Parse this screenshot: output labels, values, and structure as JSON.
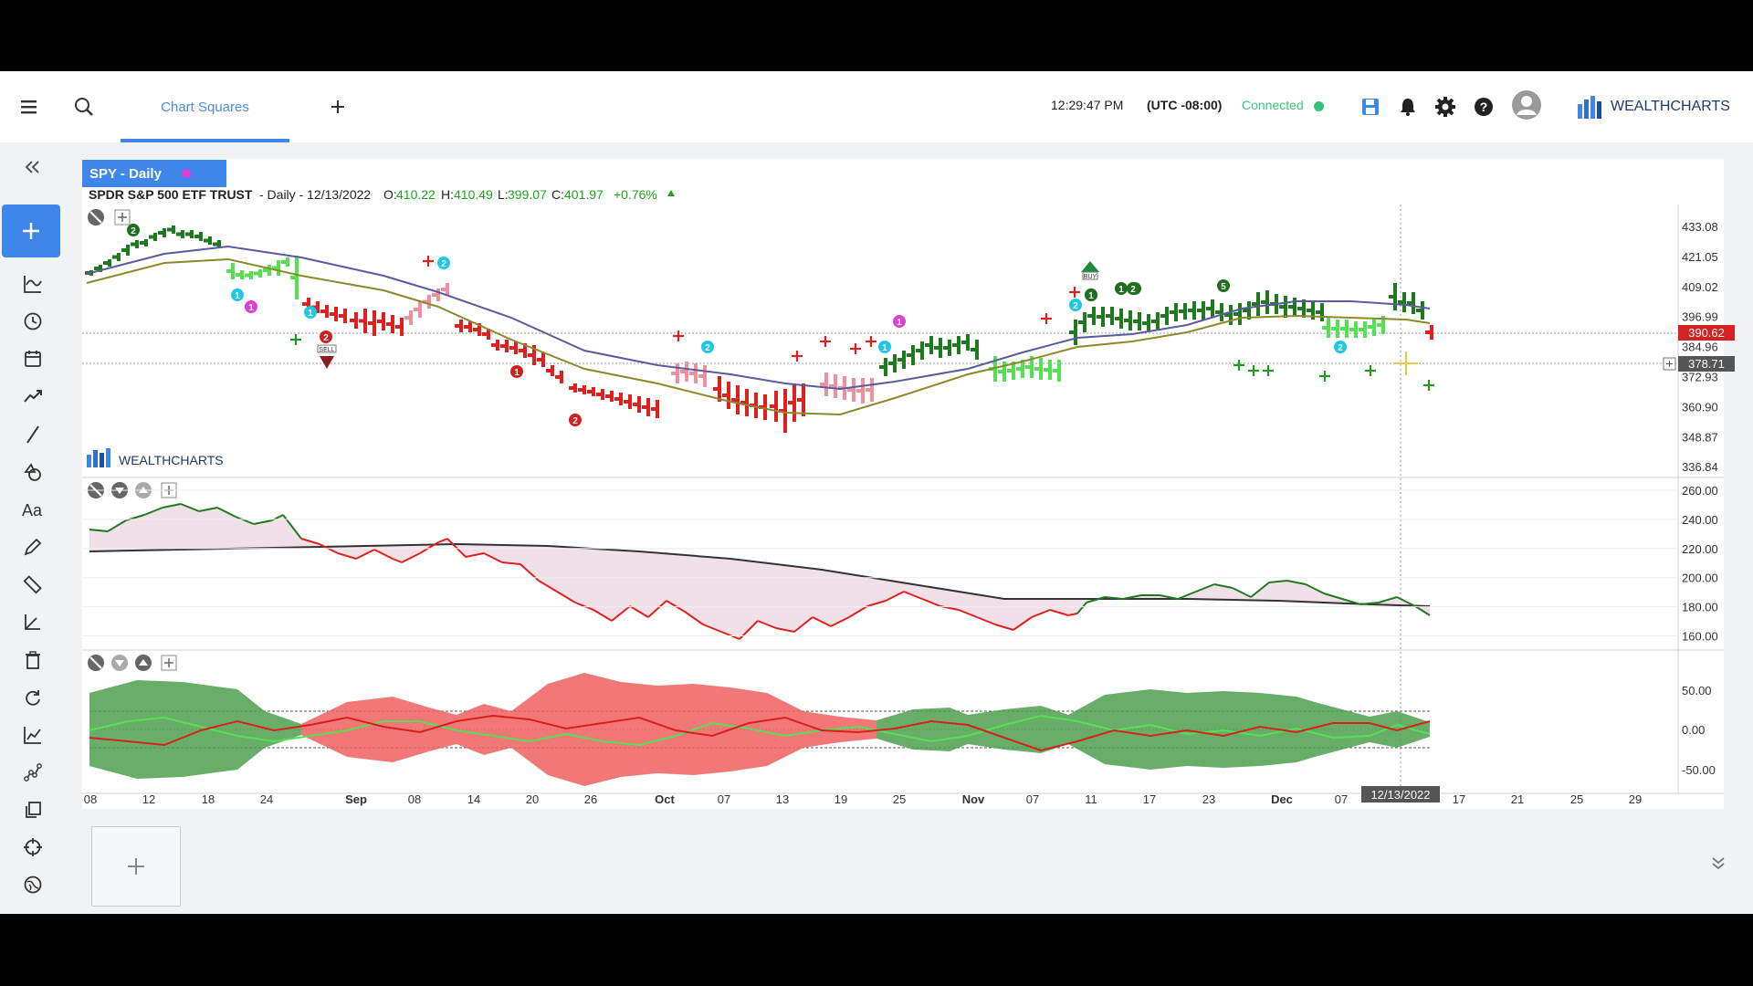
{
  "topbar": {
    "tab_label": "Chart Squares",
    "time": "12:29:47 PM",
    "timezone": "(UTC -08:00)",
    "status": "Connected",
    "status_color": "#36c37a",
    "brand": "WEALTHCHARTS"
  },
  "chart": {
    "tab_label": "SPY - Daily",
    "symbol_name": "SPDR S&P 500 ETF TRUST",
    "ohlc": {
      "prefix": "- Daily - 12/13/2022",
      "open_label": "O:",
      "open": "410.22",
      "high_label": "H:",
      "high": "410.49",
      "low_label": "L:",
      "low": "399.07",
      "close_label": "C:",
      "close": "401.97",
      "change": "+0.76%"
    },
    "watermark": "WEALTHCHARTS",
    "last_price": "390.62",
    "crosshair_price": "378.71",
    "date_label": "12/13/2022",
    "sell_label": "SELL",
    "buy_label": "BUY"
  },
  "chart_data": [
    {
      "type": "candlestick",
      "y_ticks": [
        "433.08",
        "421.05",
        "409.02",
        "396.99",
        "384.96",
        "372.93",
        "360.90",
        "348.87",
        "336.84"
      ],
      "x_ticks": [
        "08",
        "12",
        "18",
        "24",
        "Sep",
        "08",
        "14",
        "20",
        "26",
        "Oct",
        "07",
        "13",
        "19",
        "25",
        "Nov",
        "07",
        "11",
        "17",
        "23",
        "Dec",
        "07",
        "17",
        "21",
        "25",
        "29"
      ],
      "signal_labels": [
        "2",
        "1",
        "2",
        "1",
        "2",
        "1",
        "2",
        "2",
        "1",
        "1",
        "2",
        "1",
        "2",
        "2",
        "5",
        "2",
        "1",
        "1",
        "2"
      ],
      "ylim": [
        336.84,
        433.08
      ]
    },
    {
      "type": "line",
      "y_ticks": [
        "260.00",
        "240.00",
        "220.00",
        "200.00",
        "180.00",
        "160.00"
      ],
      "ylim": [
        160,
        260
      ]
    },
    {
      "type": "area",
      "y_ticks": [
        "50.00",
        "0.00",
        "-50.00"
      ],
      "ylim": [
        -50,
        50
      ]
    }
  ],
  "colors": {
    "accent": "#3f86ea",
    "up_bar": "#1f7a1f",
    "down_bar": "#e01f1f",
    "light_up": "#54e254",
    "light_down": "#f08f9e",
    "price_tag": "#d32222",
    "magenta": "#e040d0"
  }
}
